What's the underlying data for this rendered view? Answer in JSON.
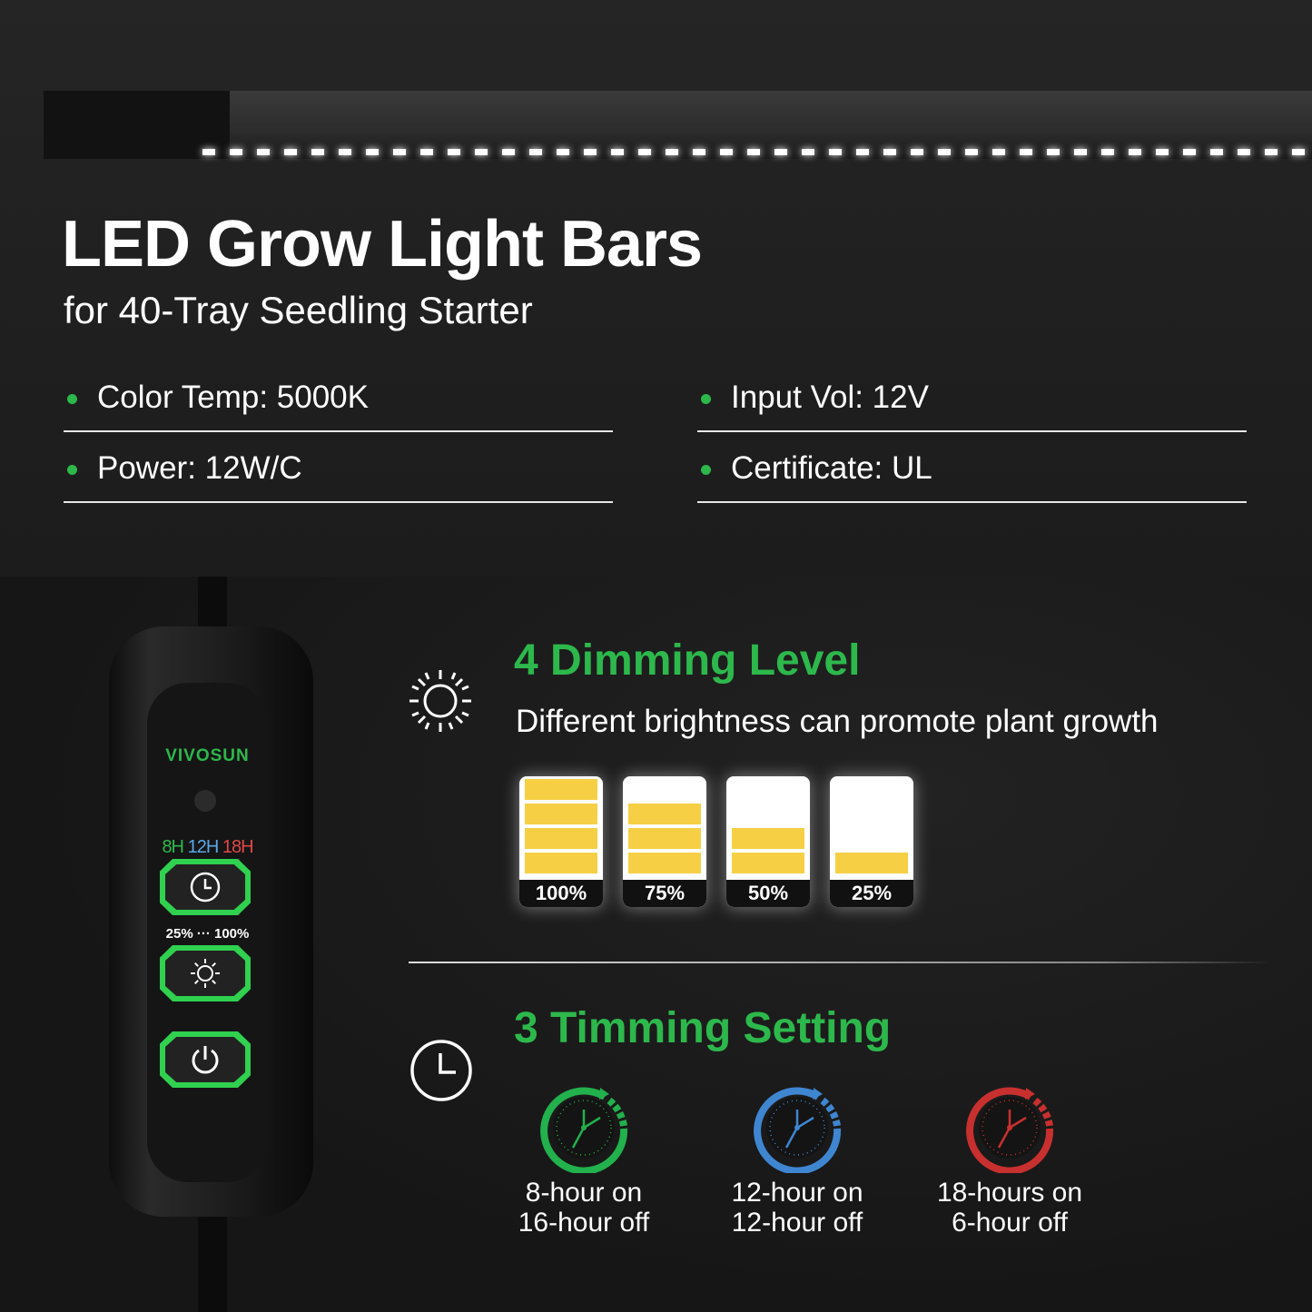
{
  "header": {
    "title": "LED Grow Light Bars",
    "subtitle": "for 40-Tray Seedling Starter"
  },
  "specs": [
    {
      "label": "Color Temp: 5000K"
    },
    {
      "label": "Input Vol: 12V"
    },
    {
      "label": "Power: 12W/C"
    },
    {
      "label": "Certificate: UL"
    }
  ],
  "controller": {
    "brand": "VIVOSUN",
    "timer_labels": [
      "8H",
      "12H",
      "18H"
    ],
    "timer_colors": [
      "#2db84c",
      "#4a90d9",
      "#d13b3b"
    ],
    "dim_range": "25% ··· 100%"
  },
  "dimming": {
    "icon": "sun-icon",
    "heading": "4 Dimming Level",
    "description": "Different brightness can promote plant growth",
    "levels": [
      {
        "label": "100%",
        "fill": 1.0
      },
      {
        "label": "75%",
        "fill": 0.75
      },
      {
        "label": "50%",
        "fill": 0.5
      },
      {
        "label": "25%",
        "fill": 0.25
      }
    ]
  },
  "timing": {
    "icon": "clock-icon",
    "heading": "3 Timming Setting",
    "options": [
      {
        "line1": "8-hour on",
        "line2": "16-hour off",
        "color": "#22b14c"
      },
      {
        "line1": "12-hour on",
        "line2": "12-hour off",
        "color": "#3f86d1"
      },
      {
        "line1": "18-hours on",
        "line2": "6-hour off",
        "color": "#c8302f"
      }
    ]
  },
  "colors": {
    "accent": "#2db84c",
    "battery_fill": "#f6cf45"
  }
}
